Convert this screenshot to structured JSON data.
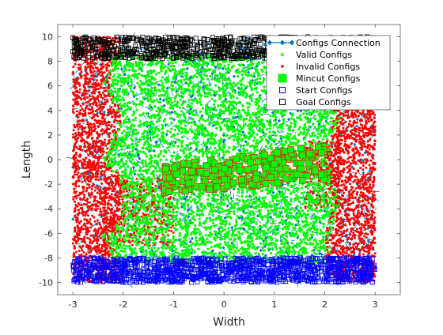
{
  "chart_data": {
    "type": "scatter",
    "xlabel": "Width",
    "ylabel": "Length",
    "xlim": [
      -3.3,
      3.5
    ],
    "ylim": [
      -11,
      11
    ],
    "xticks": [
      -3,
      -2,
      -1,
      0,
      1,
      2,
      3
    ],
    "yticks": [
      -10,
      -8,
      -6,
      -4,
      -2,
      0,
      2,
      4,
      6,
      8,
      10
    ],
    "xtick_labels": [
      "-3",
      "-2",
      "-1",
      "0",
      "1",
      "2",
      "3"
    ],
    "ytick_labels": [
      "-10",
      "-8",
      "-6",
      "-4",
      "-2",
      "0",
      "2",
      "4",
      "6",
      "8",
      "10"
    ],
    "grid": false,
    "legend_position": "top-right",
    "regions": {
      "sampling_width_range": [
        -3,
        3
      ],
      "sampling_length_range": [
        -10,
        10
      ],
      "start_length_range": [
        -10,
        -8
      ],
      "goal_length_range": [
        8.2,
        10
      ],
      "valid_width_range": [
        -2.4,
        2.3
      ],
      "mincut_band": {
        "x": [
          -1.2,
          2.0
        ],
        "y_top_left": -0.5,
        "y_top_right": 1.2,
        "y_bottom_left": -2.8,
        "y_bottom_right": -1.6
      }
    },
    "series": [
      {
        "name": "Configs Connection",
        "marker": "diamond-line",
        "color": "#0072BD"
      },
      {
        "name": "Valid Configs",
        "marker": "dot",
        "color": "#00FF00"
      },
      {
        "name": "Invalid Configs",
        "marker": "dot",
        "color": "#FF0000"
      },
      {
        "name": "Mincut Configs",
        "marker": "filled-square",
        "color": "#00FF00"
      },
      {
        "name": "Start Configs",
        "marker": "open-square",
        "color": "#0000FF"
      },
      {
        "name": "Goal Configs",
        "marker": "open-square",
        "color": "#000000"
      }
    ]
  }
}
